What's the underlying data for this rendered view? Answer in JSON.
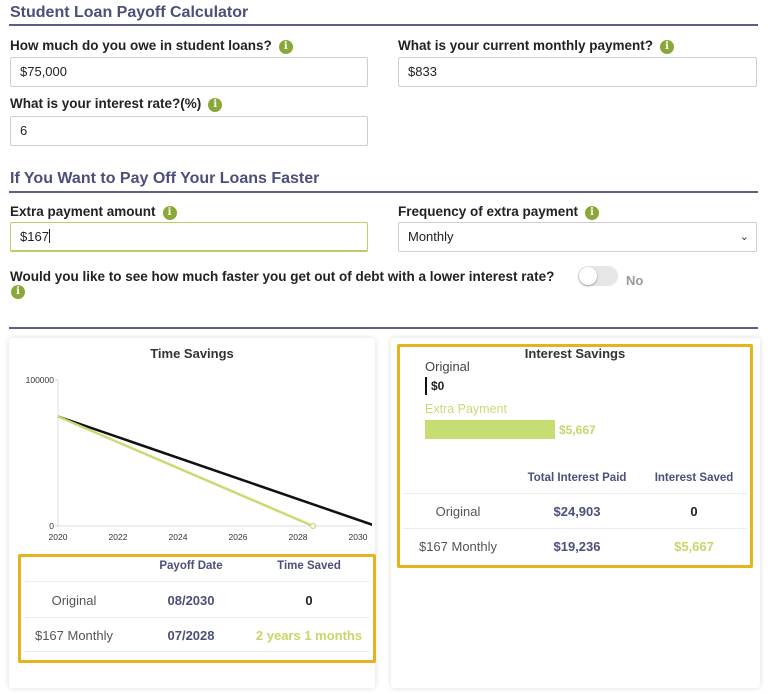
{
  "page": {
    "title": "Student Loan Payoff Calculator",
    "section2_title": "If You Want to Pay Off Your Loans Faster"
  },
  "form": {
    "owe_label": "How much do you owe in student loans?",
    "owe_value": "$75,000",
    "payment_label": "What is your current monthly payment?",
    "payment_value": "$833",
    "rate_label": "What is your interest rate?(%)",
    "rate_value": "6",
    "extra_label": "Extra payment amount",
    "extra_value": "$167",
    "frequency_label": "Frequency of extra payment",
    "frequency_value": "Monthly",
    "lower_rate_question": "Would you like to see how much faster you get out of debt with a lower interest rate?",
    "lower_rate_toggle": "No"
  },
  "time_savings": {
    "title": "Time Savings",
    "table": {
      "headers": [
        "Payoff Date",
        "Time Saved"
      ],
      "rows": [
        {
          "label": "Original",
          "payoff": "08/2030",
          "saved": "0"
        },
        {
          "label": "$167 Monthly",
          "payoff": "07/2028",
          "saved": "2 years 1 months"
        }
      ]
    }
  },
  "interest_savings": {
    "title": "Interest Savings",
    "bars": [
      {
        "name": "Original",
        "value_label": "$0",
        "value": 0
      },
      {
        "name": "Extra Payment",
        "value_label": "$5,667",
        "value": 5667
      }
    ],
    "table": {
      "headers": [
        "Total Interest Paid",
        "Interest Saved"
      ],
      "rows": [
        {
          "label": "Original",
          "paid": "$24,903",
          "saved": "0"
        },
        {
          "label": "$167 Monthly",
          "paid": "$19,236",
          "saved": "$5,667"
        }
      ]
    }
  },
  "chart_data": {
    "type": "line",
    "title": "Time Savings",
    "xlabel": "",
    "ylabel": "",
    "xlim": [
      2020,
      2030
    ],
    "ylim": [
      0,
      100000
    ],
    "x_ticks": [
      "2020",
      "2022",
      "2024",
      "2026",
      "2028",
      "2030"
    ],
    "y_ticks": [
      "0",
      "100000"
    ],
    "series": [
      {
        "color": "#111111",
        "points": [
          [
            2020,
            75000
          ],
          [
            2030.6,
            0
          ]
        ]
      },
      {
        "color": "#c6dd74",
        "points": [
          [
            2020,
            75000
          ],
          [
            2028.5,
            0
          ]
        ]
      }
    ],
    "grid": false,
    "legend": "none"
  },
  "colors": {
    "accent_navy": "#4b4f7a",
    "accent_green": "#c2d96a",
    "info_icon": "#8aa83a",
    "highlight": "#e5b31b"
  },
  "icons": {
    "info": "info-icon",
    "caret": "chevron-down-icon"
  }
}
